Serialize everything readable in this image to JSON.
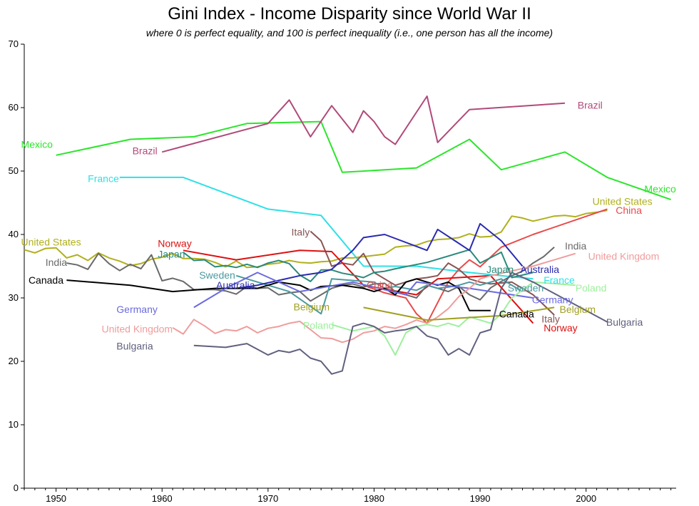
{
  "chart_data": {
    "type": "line",
    "title": "Gini Index - Income Disparity since World War II",
    "subtitle": "where 0 is perfect equality, and 100 is perfect inequality (i.e., one person has all the income)",
    "xlabel": "",
    "ylabel": "",
    "xlim": [
      1947,
      2008.5
    ],
    "ylim": [
      0,
      70
    ],
    "x_ticks": [
      1950,
      1960,
      1970,
      1980,
      1990,
      2000
    ],
    "y_ticks": [
      0,
      10,
      20,
      30,
      40,
      50,
      60,
      70
    ],
    "grid": false,
    "series": [
      {
        "name": "Mexico",
        "color": "#2be52b",
        "x": [
          1950,
          1957,
          1963,
          1968,
          1975,
          1977,
          1984,
          1989,
          1992,
          1998,
          2002,
          2008
        ],
        "y": [
          52.5,
          55.0,
          55.4,
          57.5,
          57.8,
          49.8,
          50.5,
          55.0,
          50.2,
          53.0,
          49.0,
          45.5
        ]
      },
      {
        "name": "Brazil",
        "color": "#b04a7a",
        "x": [
          1960,
          1970,
          1972,
          1974,
          1976,
          1978,
          1979,
          1980,
          1981,
          1982,
          1985,
          1986,
          1989,
          1998
        ],
        "y": [
          53.0,
          57.5,
          61.2,
          55.4,
          60.3,
          56.1,
          59.5,
          57.8,
          55.4,
          54.2,
          61.8,
          54.5,
          59.7,
          60.7
        ]
      },
      {
        "name": "France",
        "color": "#2ee0e6",
        "x": [
          1956,
          1962,
          1970,
          1975,
          1979,
          1984,
          1989,
          1995
        ],
        "y": [
          49.0,
          49.0,
          44.0,
          43.0,
          35.0,
          35.0,
          34.0,
          33.0
        ]
      },
      {
        "name": "United States",
        "color": "#b0b01c",
        "x": [
          1947,
          1948,
          1949,
          1950,
          1951,
          1952,
          1953,
          1954,
          1955,
          1956,
          1957,
          1958,
          1959,
          1960,
          1961,
          1962,
          1963,
          1964,
          1965,
          1966,
          1967,
          1968,
          1969,
          1970,
          1971,
          1972,
          1973,
          1974,
          1975,
          1976,
          1977,
          1978,
          1979,
          1980,
          1981,
          1982,
          1983,
          1984,
          1985,
          1986,
          1987,
          1988,
          1989,
          1990,
          1991,
          1992,
          1993,
          1994,
          1995,
          1996,
          1997,
          1998,
          1999,
          2000,
          2001,
          2002
        ],
        "y": [
          37.6,
          37.1,
          37.8,
          37.9,
          36.3,
          36.8,
          35.9,
          37.1,
          36.3,
          35.8,
          35.1,
          35.4,
          36.1,
          36.4,
          37.0,
          36.2,
          36.2,
          36.1,
          35.6,
          34.9,
          35.8,
          34.8,
          34.9,
          35.3,
          35.5,
          35.9,
          35.6,
          35.5,
          35.7,
          35.8,
          36.3,
          36.3,
          36.5,
          36.7,
          36.9,
          38.0,
          38.2,
          38.3,
          38.9,
          39.2,
          39.3,
          39.5,
          40.1,
          39.6,
          39.7,
          40.4,
          42.9,
          42.6,
          42.1,
          42.5,
          42.9,
          43.0,
          42.8,
          43.3,
          43.5,
          43.8
        ]
      },
      {
        "name": "China",
        "color": "#e84a4a",
        "x": [
          1979,
          1981,
          1983,
          1984,
          1985,
          1987,
          1988,
          1989,
          1990,
          1992,
          1995,
          2002
        ],
        "y": [
          32.0,
          30.8,
          30.0,
          27.5,
          26.0,
          32.5,
          34.5,
          36.0,
          34.9,
          38.0,
          40.0,
          44.0
        ]
      },
      {
        "name": "Italy",
        "color": "#8a5555",
        "x": [
          1974,
          1975,
          1976,
          1977,
          1978,
          1979,
          1980,
          1981,
          1982,
          1983,
          1984,
          1985,
          1986,
          1987,
          1988,
          1989,
          1990,
          1991,
          1993,
          1995,
          1997
        ],
        "y": [
          40.5,
          39.0,
          35.0,
          35.5,
          35.2,
          37.0,
          34.0,
          33.0,
          32.0,
          32.5,
          33.0,
          33.2,
          33.5,
          35.5,
          34.5,
          33.0,
          32.5,
          32.2,
          32.5,
          30.5,
          27.3
        ]
      },
      {
        "name": "Norway",
        "color": "#dd1111",
        "x": [
          1962,
          1967,
          1973,
          1976,
          1979,
          1984,
          1986,
          1991,
          1995
        ],
        "y": [
          37.5,
          36.0,
          37.5,
          37.3,
          32.0,
          30.5,
          33.0,
          33.5,
          26.0
        ]
      },
      {
        "name": "India",
        "color": "#6a6a6a",
        "x": [
          1951,
          1952,
          1953,
          1954,
          1955,
          1956,
          1957,
          1958,
          1959,
          1960,
          1961,
          1962,
          1963,
          1964,
          1965,
          1966,
          1967,
          1968,
          1969,
          1970,
          1971,
          1972,
          1973,
          1974,
          1975,
          1976,
          1977,
          1978,
          1979,
          1980,
          1981,
          1982,
          1983,
          1984,
          1985,
          1986,
          1987,
          1988,
          1989,
          1990,
          1991,
          1992,
          1993,
          1994,
          1995,
          1996,
          1997
        ],
        "y": [
          35.5,
          35.2,
          34.5,
          37.0,
          35.4,
          34.3,
          35.3,
          34.6,
          36.8,
          32.7,
          33.1,
          32.6,
          31.3,
          31.3,
          31.3,
          31.1,
          30.6,
          31.8,
          31.5,
          31.6,
          30.5,
          30.8,
          31.0,
          29.5,
          30.5,
          31.5,
          32.0,
          32.2,
          31.7,
          32.2,
          32.3,
          31.0,
          30.5,
          30.0,
          32.0,
          31.5,
          31.0,
          31.8,
          30.5,
          29.7,
          31.6,
          32.6,
          33.5,
          34.2,
          35.5,
          36.5,
          38.0
        ]
      },
      {
        "name": "Japan",
        "color": "#2a8a7a",
        "x": [
          1962,
          1963,
          1964,
          1965,
          1966,
          1967,
          1968,
          1969,
          1970,
          1971,
          1972,
          1973,
          1974,
          1975,
          1976,
          1977,
          1978,
          1979,
          1980,
          1981,
          1982,
          1985,
          1989,
          1990,
          1992,
          1993,
          1995
        ],
        "y": [
          37.2,
          35.9,
          36.0,
          34.9,
          35.1,
          34.8,
          35.3,
          34.8,
          35.5,
          35.9,
          35.4,
          33.6,
          32.6,
          34.4,
          34.4,
          33.9,
          33.6,
          33.2,
          34.0,
          34.2,
          34.6,
          35.6,
          37.6,
          35.5,
          37.2,
          33.2,
          34.0
        ]
      },
      {
        "name": "Sweden",
        "color": "#4a9aa0",
        "x": [
          1967,
          1972,
          1975,
          1976,
          1980,
          1981,
          1982,
          1983,
          1984,
          1985,
          1986,
          1987,
          1988,
          1989,
          1990,
          1991,
          1992,
          1994
        ],
        "y": [
          33.5,
          31.0,
          27.5,
          33.0,
          32.5,
          31.5,
          31.8,
          31.5,
          31.2,
          32.0,
          31.5,
          31.7,
          32.0,
          32.5,
          32.0,
          32.5,
          33.0,
          31.0
        ]
      },
      {
        "name": "Australia",
        "color": "#2a2ab0",
        "x": [
          1967,
          1969,
          1973,
          1975,
          1976,
          1978,
          1979,
          1981,
          1985,
          1986,
          1989,
          1990,
          1992,
          1994
        ],
        "y": [
          31.5,
          32.0,
          33.5,
          34.0,
          34.5,
          37.5,
          39.5,
          40.0,
          37.5,
          40.8,
          37.5,
          41.7,
          39.0,
          35.0
        ]
      },
      {
        "name": "Canada",
        "color": "#000000",
        "x": [
          1951,
          1957,
          1961,
          1965,
          1969,
          1971,
          1973,
          1974,
          1975,
          1977,
          1979,
          1980,
          1981,
          1982,
          1983,
          1984,
          1985,
          1986,
          1987,
          1988,
          1989,
          1990,
          1991
        ],
        "y": [
          32.8,
          32.0,
          31.0,
          31.5,
          31.5,
          32.5,
          32.0,
          31.2,
          31.8,
          32.0,
          31.5,
          31.0,
          31.5,
          30.5,
          32.5,
          33.0,
          32.5,
          32.0,
          32.5,
          31.5,
          28.0,
          28.0,
          28.0
        ]
      },
      {
        "name": "Germany",
        "color": "#6a6ae0",
        "x": [
          1963,
          1966,
          1969,
          1973,
          1978,
          1983,
          1984,
          1989,
          1995
        ],
        "y": [
          28.5,
          31.5,
          34.0,
          31.0,
          32.5,
          30.5,
          32.5,
          31.5,
          30.0
        ]
      },
      {
        "name": "United Kingdom",
        "color": "#f09c9c",
        "x": [
          1961,
          1962,
          1963,
          1964,
          1965,
          1966,
          1967,
          1968,
          1969,
          1970,
          1971,
          1972,
          1973,
          1974,
          1975,
          1976,
          1977,
          1978,
          1979,
          1980,
          1981,
          1982,
          1983,
          1984,
          1985,
          1986,
          1987,
          1988,
          1989,
          1990,
          1991,
          1995,
          1999
        ],
        "y": [
          25.3,
          24.3,
          26.6,
          25.6,
          24.4,
          25.0,
          24.8,
          25.5,
          24.5,
          25.2,
          25.5,
          26.0,
          26.3,
          25.0,
          23.7,
          23.6,
          23.0,
          23.5,
          24.5,
          24.8,
          25.5,
          25.2,
          25.8,
          26.5,
          26.0,
          27.0,
          28.3,
          30.2,
          31.5,
          33.0,
          33.5,
          35.0,
          37.0
        ]
      },
      {
        "name": "Poland",
        "color": "#9cf09c",
        "x": [
          1976,
          1978,
          1980,
          1981,
          1982,
          1983,
          1984,
          1985,
          1986,
          1987,
          1988,
          1989,
          1990,
          1991,
          1992,
          1993,
          1995,
          1999
        ],
        "y": [
          25.8,
          24.8,
          25.5,
          24.0,
          21.0,
          24.5,
          25.5,
          25.8,
          25.5,
          26.0,
          25.5,
          27.0,
          26.5,
          26.0,
          27.5,
          30.0,
          32.5,
          32.0
        ]
      },
      {
        "name": "Belgium",
        "color": "#a0a020",
        "x": [
          1979,
          1985,
          1992,
          1997
        ],
        "y": [
          28.5,
          26.5,
          27.2,
          28.5
        ]
      },
      {
        "name": "Bulgaria",
        "color": "#606080",
        "x": [
          1963,
          1966,
          1968,
          1970,
          1971,
          1972,
          1973,
          1974,
          1975,
          1976,
          1977,
          1978,
          1979,
          1980,
          1981,
          1982,
          1983,
          1984,
          1985,
          1986,
          1987,
          1988,
          1989,
          1990,
          1991,
          1992,
          1993,
          1995,
          2002
        ],
        "y": [
          22.5,
          22.2,
          22.8,
          21.0,
          21.7,
          21.4,
          21.9,
          20.5,
          20.0,
          18.0,
          18.5,
          25.5,
          26.0,
          25.5,
          24.5,
          24.8,
          25.0,
          25.5,
          24.0,
          23.5,
          21.0,
          22.0,
          21.0,
          24.5,
          25.0,
          31.5,
          34.0,
          32.5,
          26.2
        ]
      }
    ],
    "series_labels": [
      {
        "series": "Mexico",
        "text": "Mexico",
        "x": 1946.7,
        "y": 54.2,
        "anchor": "start"
      },
      {
        "series": "Mexico",
        "text": "Mexico",
        "x": 2005.5,
        "y": 47.2,
        "anchor": "start"
      },
      {
        "series": "Brazil",
        "text": "Brazil",
        "x": 1957.2,
        "y": 53.2,
        "anchor": "start"
      },
      {
        "series": "Brazil",
        "text": "Brazil",
        "x": 1999.2,
        "y": 60.4,
        "anchor": "start"
      },
      {
        "series": "France",
        "text": "France",
        "x": 1953.0,
        "y": 48.8,
        "anchor": "start"
      },
      {
        "series": "France",
        "text": "France",
        "x": 1996.0,
        "y": 32.8,
        "anchor": "start"
      },
      {
        "series": "United States",
        "text": "United States",
        "x": 1946.7,
        "y": 38.8,
        "anchor": "start"
      },
      {
        "series": "United States",
        "text": "United States",
        "x": 2000.6,
        "y": 45.2,
        "anchor": "start"
      },
      {
        "series": "China",
        "text": "China",
        "x": 1979.3,
        "y": 32.0,
        "anchor": "start"
      },
      {
        "series": "China",
        "text": "China",
        "x": 2002.8,
        "y": 43.8,
        "anchor": "start"
      },
      {
        "series": "Italy",
        "text": "Italy",
        "x": 1972.2,
        "y": 40.4,
        "anchor": "start"
      },
      {
        "series": "Italy",
        "text": "Italy",
        "x": 1995.8,
        "y": 26.7,
        "anchor": "start"
      },
      {
        "series": "Norway",
        "text": "Norway",
        "x": 1959.6,
        "y": 38.6,
        "anchor": "start"
      },
      {
        "series": "Norway",
        "text": "Norway",
        "x": 1996.0,
        "y": 25.3,
        "anchor": "start"
      },
      {
        "series": "India",
        "text": "India",
        "x": 1949.0,
        "y": 35.6,
        "anchor": "start"
      },
      {
        "series": "India",
        "text": "India",
        "x": 1998.0,
        "y": 38.2,
        "anchor": "start"
      },
      {
        "series": "Japan",
        "text": "Japan",
        "x": 1959.6,
        "y": 36.9,
        "anchor": "start"
      },
      {
        "series": "Japan",
        "text": "Japan",
        "x": 1990.6,
        "y": 34.5,
        "anchor": "start"
      },
      {
        "series": "Sweden",
        "text": "Sweden",
        "x": 1963.5,
        "y": 33.6,
        "anchor": "start"
      },
      {
        "series": "Sweden",
        "text": "Sweden",
        "x": 1992.6,
        "y": 31.6,
        "anchor": "start"
      },
      {
        "series": "Australia",
        "text": "Australia",
        "x": 1965.1,
        "y": 32.0,
        "anchor": "start"
      },
      {
        "series": "Australia",
        "text": "Australia",
        "x": 1993.8,
        "y": 34.5,
        "anchor": "start"
      },
      {
        "series": "Canada",
        "text": "Canada",
        "x": 1947.4,
        "y": 32.8,
        "anchor": "start"
      },
      {
        "series": "Canada",
        "text": "Canada",
        "x": 1991.8,
        "y": 27.5,
        "anchor": "start"
      },
      {
        "series": "Germany",
        "text": "Germany",
        "x": 1955.7,
        "y": 28.2,
        "anchor": "start"
      },
      {
        "series": "Germany",
        "text": "Germany",
        "x": 1994.9,
        "y": 29.7,
        "anchor": "start"
      },
      {
        "series": "United Kingdom",
        "text": "United Kingdom",
        "x": 1954.3,
        "y": 25.1,
        "anchor": "start"
      },
      {
        "series": "United Kingdom",
        "text": "United Kingdom",
        "x": 2000.2,
        "y": 36.6,
        "anchor": "start"
      },
      {
        "series": "Poland",
        "text": "Poland",
        "x": 1973.3,
        "y": 25.7,
        "anchor": "start"
      },
      {
        "series": "Poland",
        "text": "Poland",
        "x": 1999.0,
        "y": 31.6,
        "anchor": "start"
      },
      {
        "series": "Belgium",
        "text": "Belgium",
        "x": 1972.4,
        "y": 28.6,
        "anchor": "start"
      },
      {
        "series": "Belgium",
        "text": "Belgium",
        "x": 1997.5,
        "y": 28.2,
        "anchor": "start"
      },
      {
        "series": "Bulgaria",
        "text": "Bulgaria",
        "x": 1955.7,
        "y": 22.4,
        "anchor": "start"
      },
      {
        "series": "Bulgaria",
        "text": "Bulgaria",
        "x": 2001.9,
        "y": 26.2,
        "anchor": "start"
      }
    ]
  }
}
